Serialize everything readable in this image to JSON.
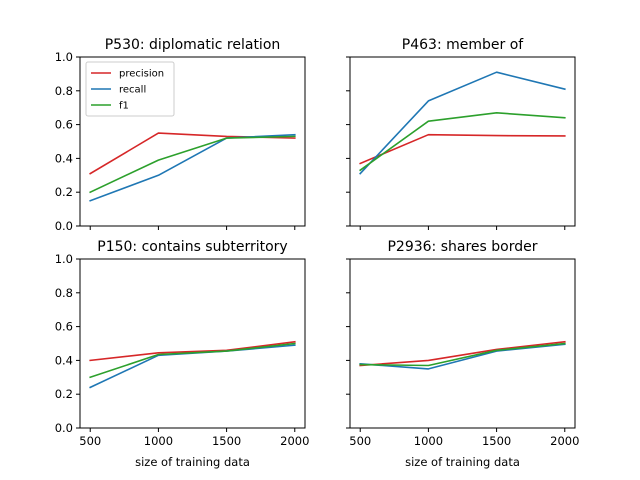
{
  "chart_data": [
    {
      "type": "line",
      "title": "P530: diplomatic relation",
      "x": [
        500,
        1000,
        1500,
        2000
      ],
      "xlabel": "",
      "ylabel": "",
      "ylim": [
        0,
        1
      ],
      "yticks": [
        0.0,
        0.2,
        0.4,
        0.6,
        0.8,
        1.0
      ],
      "ytick_labels": [
        "0.0",
        "0.2",
        "0.4",
        "0.6",
        "0.8",
        "1.0"
      ],
      "show_x_ticklabels": false,
      "show_y_ticklabels": true,
      "legend": {
        "placement": "upper-left"
      },
      "series": [
        {
          "name": "precision",
          "color": "#d62728",
          "values": [
            0.31,
            0.55,
            0.53,
            0.52
          ]
        },
        {
          "name": "recall",
          "color": "#1f77b4",
          "values": [
            0.15,
            0.3,
            0.52,
            0.54
          ]
        },
        {
          "name": "f1",
          "color": "#2ca02c",
          "values": [
            0.2,
            0.39,
            0.52,
            0.53
          ]
        }
      ]
    },
    {
      "type": "line",
      "title": "P463: member of",
      "x": [
        500,
        1000,
        1500,
        2000
      ],
      "xlabel": "",
      "ylabel": "",
      "ylim": [
        0,
        1
      ],
      "show_x_ticklabels": false,
      "show_y_ticklabels": false,
      "series": [
        {
          "color": "#d62728",
          "values": [
            0.37,
            0.54,
            0.535,
            0.533
          ]
        },
        {
          "color": "#1f77b4",
          "values": [
            0.31,
            0.74,
            0.91,
            0.81
          ]
        },
        {
          "color": "#2ca02c",
          "values": [
            0.33,
            0.62,
            0.67,
            0.64
          ]
        }
      ]
    },
    {
      "type": "line",
      "title": "P150: contains subterritory",
      "x": [
        500,
        1000,
        1500,
        2000
      ],
      "xticks": [
        500,
        1000,
        1500,
        2000
      ],
      "xtick_labels": [
        "500",
        "1000",
        "1500",
        "2000"
      ],
      "xlabel": "size of training data",
      "ylabel": "",
      "ylim": [
        0,
        1
      ],
      "yticks": [
        0.0,
        0.2,
        0.4,
        0.6,
        0.8,
        1.0
      ],
      "ytick_labels": [
        "0.0",
        "0.2",
        "0.4",
        "0.6",
        "0.8",
        "1.0"
      ],
      "show_x_ticklabels": true,
      "show_y_ticklabels": true,
      "series": [
        {
          "color": "#d62728",
          "values": [
            0.4,
            0.445,
            0.46,
            0.51
          ]
        },
        {
          "color": "#1f77b4",
          "values": [
            0.24,
            0.43,
            0.455,
            0.49
          ]
        },
        {
          "color": "#2ca02c",
          "values": [
            0.3,
            0.435,
            0.455,
            0.5
          ]
        }
      ]
    },
    {
      "type": "line",
      "title": "P2936: shares border",
      "x": [
        500,
        1000,
        1500,
        2000
      ],
      "xticks": [
        500,
        1000,
        1500,
        2000
      ],
      "xtick_labels": [
        "500",
        "1000",
        "1500",
        "2000"
      ],
      "xlabel": "size of training data",
      "ylabel": "",
      "ylim": [
        0,
        1
      ],
      "show_x_ticklabels": true,
      "show_y_ticklabels": false,
      "series": [
        {
          "color": "#d62728",
          "values": [
            0.37,
            0.4,
            0.465,
            0.51
          ]
        },
        {
          "color": "#1f77b4",
          "values": [
            0.38,
            0.35,
            0.455,
            0.495
          ]
        },
        {
          "color": "#2ca02c",
          "values": [
            0.375,
            0.37,
            0.46,
            0.5
          ]
        }
      ]
    }
  ]
}
